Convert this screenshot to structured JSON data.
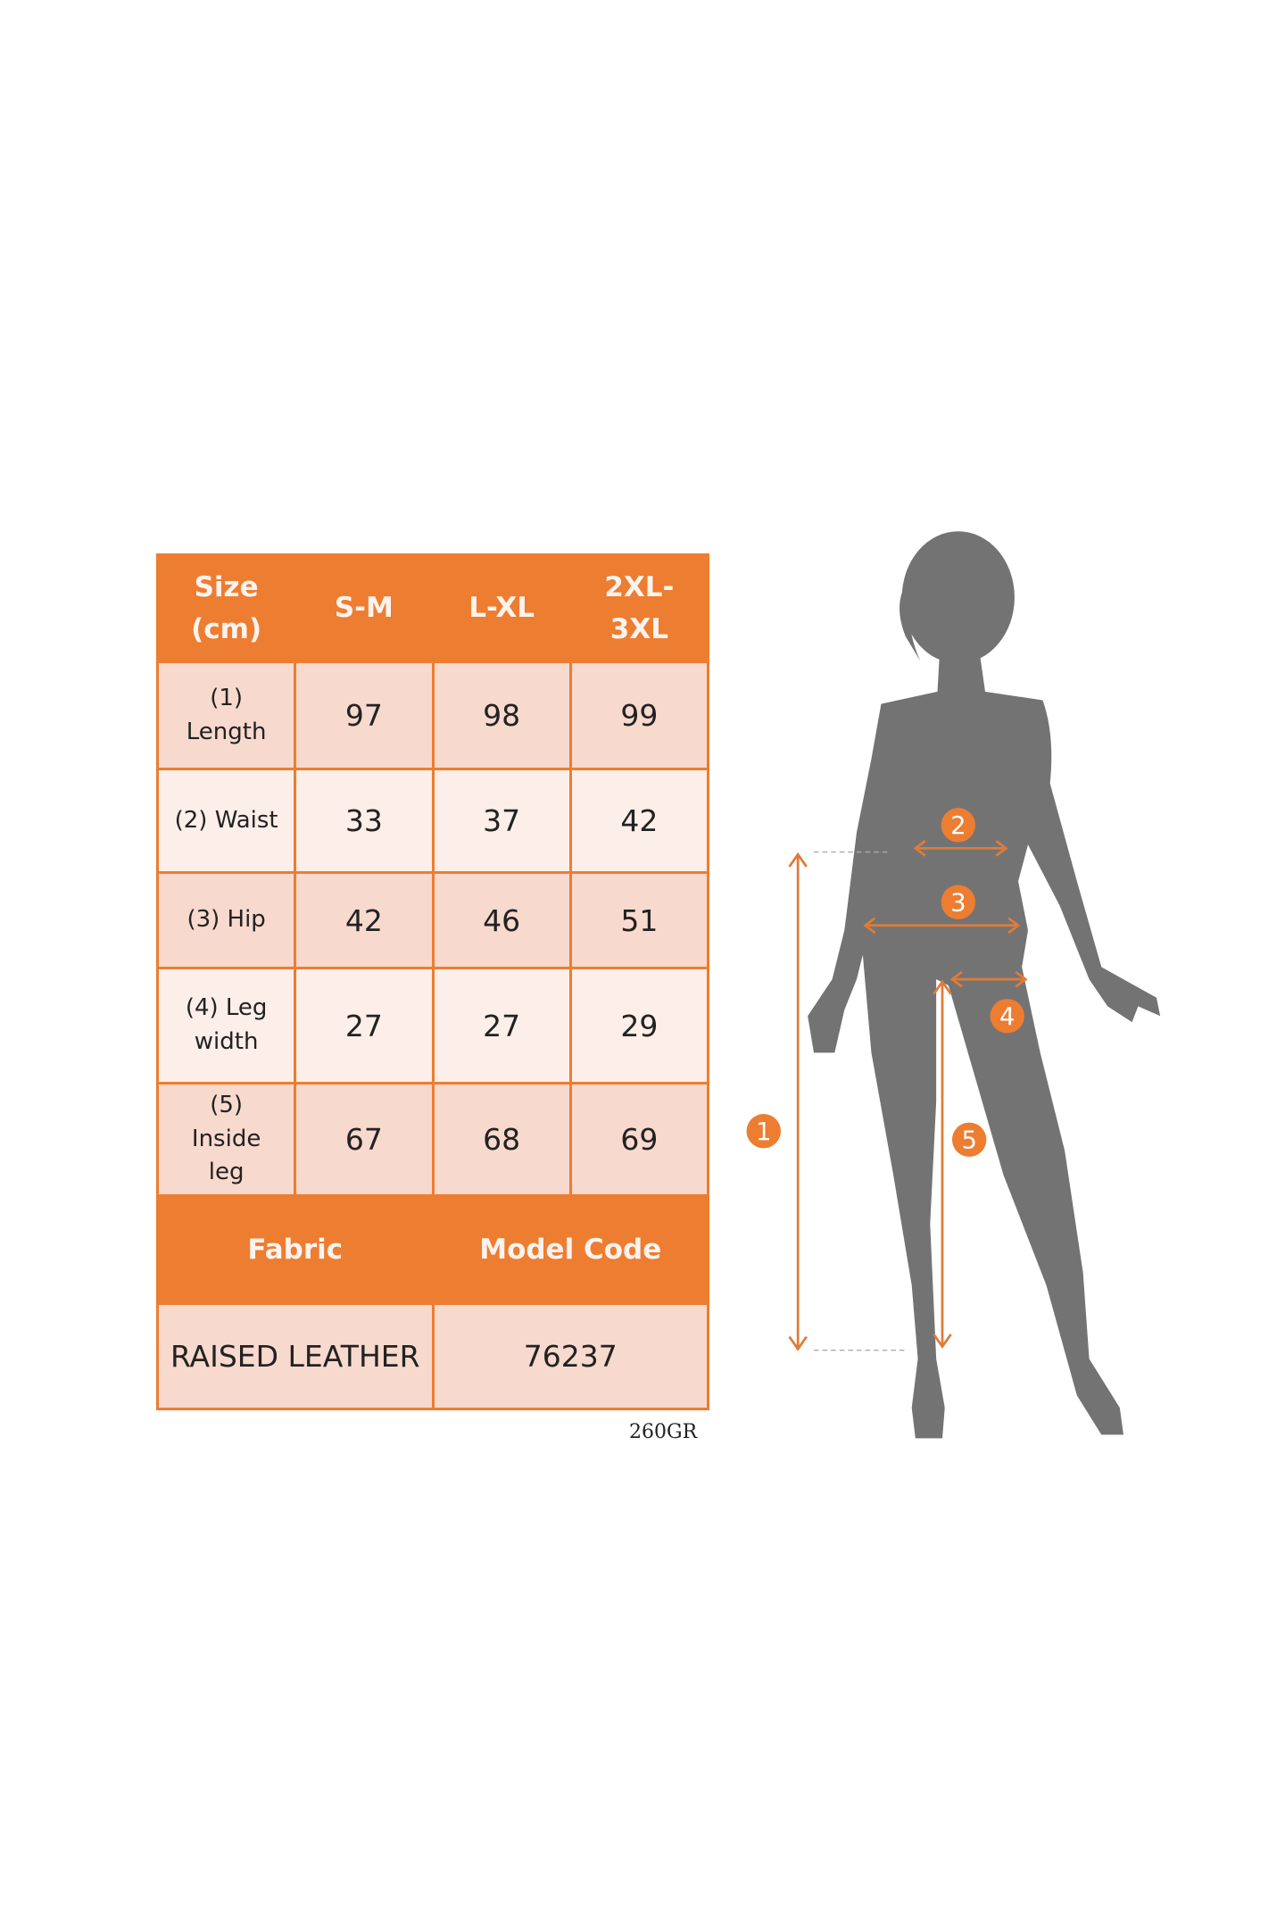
{
  "table": {
    "header": [
      "Size\n(cm)",
      "S-M",
      "L-XL",
      "2XL-\n3XL"
    ],
    "rows": [
      {
        "label": "(1)\nLength",
        "values": [
          "97",
          "98",
          "99"
        ]
      },
      {
        "label": "(2) Waist",
        "values": [
          "33",
          "37",
          "42"
        ]
      },
      {
        "label": "(3) Hip",
        "values": [
          "42",
          "46",
          "51"
        ]
      },
      {
        "label": "(4) Leg\nwidth",
        "values": [
          "27",
          "27",
          "29"
        ]
      },
      {
        "label": "(5)\nInside\nleg",
        "values": [
          "67",
          "68",
          "69"
        ]
      }
    ],
    "footer_header": [
      "Fabric",
      "Model Code"
    ],
    "footer_values": [
      "RAISED LEATHER",
      "76237"
    ]
  },
  "weight": "260GR",
  "figure": {
    "markers": [
      "1",
      "2",
      "3",
      "4",
      "5"
    ]
  },
  "colors": {
    "accent": "#ed7d31",
    "cell_dark": "#f8d9cd",
    "cell_light": "#fceee8",
    "silhouette": "#737373"
  }
}
